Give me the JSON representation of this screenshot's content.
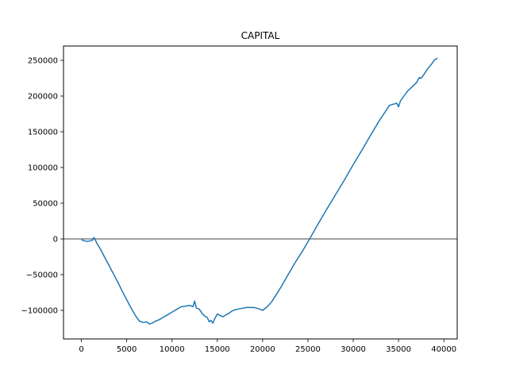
{
  "chart_data": {
    "type": "line",
    "title": "CAPITAL",
    "xlabel": "",
    "ylabel": "",
    "xlim": [
      -1975,
      41475
    ],
    "ylim": [
      -140000,
      270000
    ],
    "x_ticks": [
      0,
      5000,
      10000,
      15000,
      20000,
      25000,
      30000,
      35000,
      40000
    ],
    "y_ticks": [
      -100000,
      -50000,
      0,
      50000,
      100000,
      150000,
      200000,
      250000
    ],
    "x_tick_labels": [
      "0",
      "5000",
      "10000",
      "15000",
      "20000",
      "25000",
      "30000",
      "35000",
      "40000"
    ],
    "y_tick_labels": [
      "−100000",
      "−50000",
      "0",
      "50000",
      "100000",
      "150000",
      "200000",
      "250000"
    ],
    "grid": false,
    "reference_line": {
      "y": 0,
      "color": "#808080"
    },
    "series": [
      {
        "color": "#1f77b4",
        "x": [
          0,
          300,
          600,
          900,
          1200,
          1400,
          1550,
          1700,
          2000,
          2500,
          3000,
          3500,
          4000,
          4500,
          5000,
          5500,
          6000,
          6400,
          6800,
          7200,
          7500,
          7800,
          8200,
          8600,
          9000,
          9400,
          9800,
          10200,
          10600,
          11000,
          11500,
          12000,
          12300,
          12500,
          12700,
          13000,
          13300,
          13600,
          13900,
          14100,
          14300,
          14500,
          14700,
          15000,
          15300,
          15600,
          16000,
          16300,
          16600,
          17000,
          17400,
          17800,
          18200,
          18600,
          19000,
          19400,
          19800,
          20000,
          20500,
          21000,
          21500,
          22000,
          22500,
          23000,
          23500,
          24000,
          24500,
          25000,
          25500,
          26000,
          27000,
          28000,
          29000,
          30000,
          31000,
          32000,
          33000,
          34000,
          34800,
          35000,
          35200,
          35600,
          36000,
          36500,
          37000,
          37300,
          37500,
          37800,
          38200,
          38600,
          39000,
          39300
        ],
        "y": [
          -1000,
          -2500,
          -3500,
          -3000,
          -2000,
          2000,
          -1500,
          -6000,
          -12000,
          -24000,
          -36000,
          -48000,
          -60000,
          -73000,
          -85000,
          -97000,
          -108000,
          -115000,
          -117000,
          -116000,
          -119000,
          -118000,
          -115000,
          -113000,
          -110000,
          -107000,
          -104000,
          -101000,
          -98000,
          -95000,
          -94000,
          -93000,
          -95000,
          -87000,
          -97000,
          -98000,
          -104000,
          -108000,
          -110000,
          -116000,
          -114000,
          -118000,
          -112000,
          -105000,
          -107000,
          -109000,
          -106000,
          -104000,
          -101000,
          -99000,
          -98000,
          -97000,
          -96000,
          -96000,
          -96000,
          -97000,
          -99000,
          -100000,
          -95000,
          -88000,
          -78000,
          -68000,
          -57000,
          -46000,
          -35000,
          -25000,
          -15000,
          -4000,
          7000,
          18000,
          40000,
          61000,
          82000,
          104000,
          125000,
          147000,
          168000,
          187000,
          190000,
          185000,
          193000,
          200000,
          207000,
          213000,
          219000,
          226000,
          225000,
          230000,
          238000,
          244000,
          251000,
          253000
        ]
      }
    ]
  }
}
